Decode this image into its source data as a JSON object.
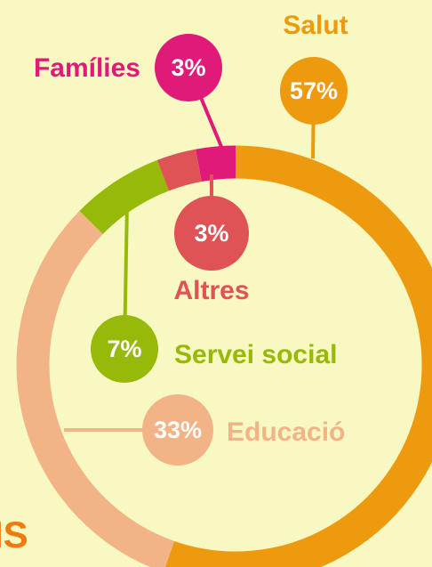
{
  "chart_data": {
    "type": "donut",
    "categories": [
      "Salut",
      "Educació",
      "Servei social",
      "Altres",
      "Famílies"
    ],
    "values": [
      57,
      33,
      7,
      3,
      3
    ],
    "value_labels": [
      "57%",
      "33%",
      "7%",
      "3%",
      "3%"
    ],
    "colors": [
      "#ee9a0e",
      "#f2b386",
      "#97b90a",
      "#df5256",
      "#e01a78"
    ],
    "footer_text": "IS"
  }
}
